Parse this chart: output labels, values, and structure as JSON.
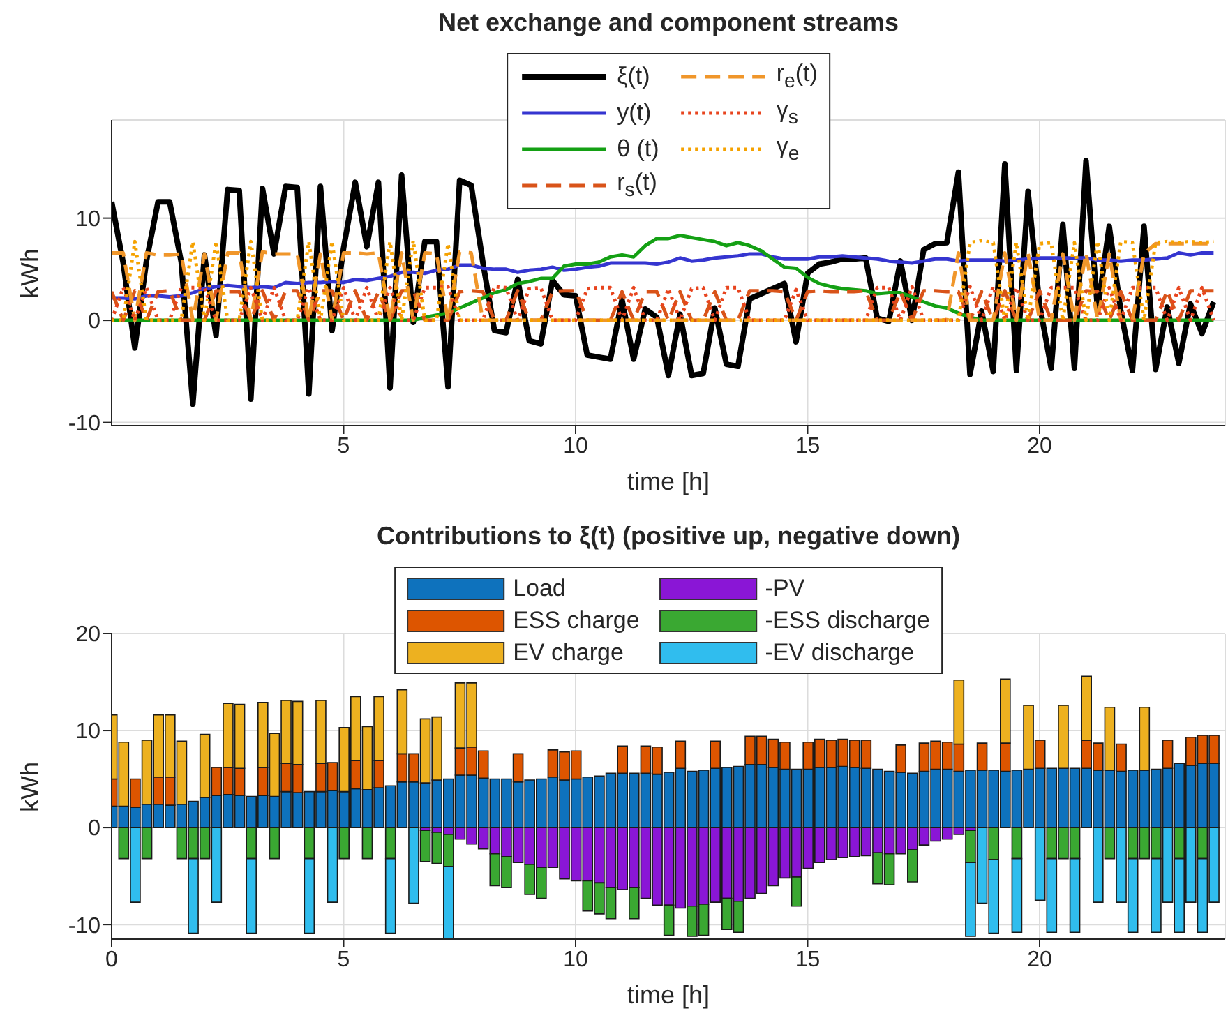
{
  "chart_data": [
    {
      "type": "line",
      "title": "Net exchange and component streams",
      "xlabel": "time [h]",
      "ylabel": "kWh",
      "x": [
        0,
        0.25,
        0.5,
        0.75,
        1,
        1.25,
        1.5,
        1.75,
        2,
        2.25,
        2.5,
        2.75,
        3,
        3.25,
        3.5,
        3.75,
        4,
        4.25,
        4.5,
        4.75,
        5,
        5.25,
        5.5,
        5.75,
        6,
        6.25,
        6.5,
        6.75,
        7,
        7.25,
        7.5,
        7.75,
        8,
        8.25,
        8.5,
        8.75,
        9,
        9.25,
        9.5,
        9.75,
        10,
        10.25,
        10.5,
        10.75,
        11,
        11.25,
        11.5,
        11.75,
        12,
        12.25,
        12.5,
        12.75,
        13,
        13.25,
        13.5,
        13.75,
        14,
        14.25,
        14.5,
        14.75,
        15,
        15.25,
        15.5,
        15.75,
        16,
        16.25,
        16.5,
        16.75,
        17,
        17.25,
        17.5,
        17.75,
        18,
        18.25,
        18.5,
        18.75,
        19,
        19.25,
        19.5,
        19.75,
        20,
        20.25,
        20.5,
        20.75,
        21,
        21.25,
        21.5,
        21.75,
        22,
        22.25,
        22.5,
        22.75,
        23,
        23.25,
        23.5,
        23.75
      ],
      "xlim": [
        0,
        24
      ],
      "xticks": [
        5,
        10,
        15,
        20
      ],
      "ylim": [
        -10.3,
        19.6
      ],
      "yticks": [
        -10,
        0,
        10
      ],
      "grid": true,
      "legend": "top",
      "series": [
        {
          "name": "ξ(t)",
          "color": "#000000",
          "line_style": "solid",
          "values": [
            11.6,
            5.6,
            -2.7,
            5.8,
            11.6,
            11.6,
            5.7,
            -8.2,
            6.4,
            -1.5,
            12.8,
            12.7,
            -7.7,
            12.9,
            6.5,
            13.1,
            13.0,
            -7.2,
            13.1,
            -1.0,
            7.1,
            13.5,
            7.2,
            13.5,
            -6.6,
            14.2,
            -0.2,
            7.7,
            7.7,
            -6.5,
            13.7,
            13.2,
            5.7,
            -1.0,
            -1.2,
            4.0,
            -2.0,
            -2.3,
            3.9,
            2.5,
            2.4,
            -3.4,
            -3.6,
            -3.8,
            2.0,
            -3.8,
            1.1,
            0.3,
            -5.4,
            0.6,
            -5.4,
            -5.2,
            1.2,
            -4.3,
            -4.5,
            2.1,
            2.6,
            3.1,
            3.6,
            -2.1,
            4.6,
            5.5,
            5.7,
            6.0,
            6.0,
            6.1,
            0.2,
            -0.1,
            5.8,
            0.0,
            6.9,
            7.5,
            7.6,
            14.5,
            -5.3,
            0.9,
            -5.0,
            15.3,
            -4.9,
            12.6,
            1.5,
            -4.7,
            9.4,
            -4.7,
            15.6,
            1.0,
            9.2,
            0.9,
            -4.9,
            9.2,
            -4.8,
            1.3,
            -4.2,
            1.6,
            -1.3,
            1.8
          ]
        },
        {
          "name": "y(t)",
          "color": "#3535d0",
          "line_style": "solid",
          "values": [
            2.2,
            2.2,
            2.1,
            2.4,
            2.4,
            2.3,
            2.4,
            2.7,
            3.1,
            3.3,
            3.4,
            3.3,
            3.2,
            3.3,
            3.2,
            3.7,
            3.6,
            3.7,
            3.7,
            3.8,
            3.7,
            4.0,
            3.9,
            4.1,
            4.3,
            4.7,
            4.7,
            4.6,
            4.9,
            5.0,
            5.4,
            5.4,
            5.1,
            5.0,
            5.0,
            4.7,
            4.9,
            5.0,
            5.2,
            4.9,
            5.0,
            5.2,
            5.3,
            5.6,
            5.6,
            5.6,
            5.6,
            5.5,
            5.7,
            6.1,
            5.8,
            5.9,
            6.1,
            6.2,
            6.3,
            6.5,
            6.5,
            6.2,
            6.0,
            6.0,
            6.0,
            6.2,
            6.2,
            6.3,
            6.2,
            6.1,
            6.0,
            5.8,
            5.7,
            5.6,
            5.8,
            6.0,
            6.0,
            5.8,
            5.9,
            5.9,
            5.9,
            5.8,
            5.9,
            6.0,
            6.1,
            6.1,
            6.1,
            6.1,
            6.1,
            5.9,
            5.9,
            5.8,
            5.9,
            5.9,
            6.0,
            6.1,
            6.6,
            6.4,
            6.6,
            6.6
          ]
        },
        {
          "name": "θ (t)",
          "color": "#14a014",
          "line_style": "solid",
          "values": [
            0,
            0,
            0,
            0,
            0,
            0,
            0,
            0,
            0,
            0,
            0,
            0,
            0,
            0,
            0,
            0,
            0,
            0,
            0,
            0,
            0,
            0,
            0,
            0,
            0,
            0,
            0,
            0.3,
            0.5,
            0.7,
            1.2,
            1.7,
            2.2,
            2.7,
            3.0,
            3.6,
            3.8,
            4.1,
            4.1,
            5.3,
            5.5,
            5.5,
            5.7,
            6.2,
            6.4,
            6.2,
            7.3,
            8.0,
            8.0,
            8.3,
            8.1,
            7.9,
            7.7,
            7.3,
            7.6,
            7.3,
            6.8,
            6.0,
            5.2,
            5.1,
            4.2,
            3.6,
            3.3,
            3.1,
            3.0,
            2.9,
            2.6,
            2.7,
            2.7,
            2.3,
            1.8,
            1.4,
            1.2,
            0.7,
            0.3,
            0,
            0,
            0,
            0,
            0,
            0,
            0,
            0,
            0,
            0,
            0,
            0,
            0,
            0,
            0,
            0,
            0,
            0,
            0,
            0,
            0
          ]
        },
        {
          "name": "r$_{s}$(t)",
          "color": "#d95319",
          "line_style": "dashed",
          "values": [
            2.8,
            0,
            2.9,
            0,
            2.8,
            2.9,
            0,
            0,
            0,
            2.9,
            2.8,
            2.8,
            0,
            2.9,
            0,
            2.9,
            2.9,
            0,
            2.9,
            2.9,
            0,
            2.9,
            0,
            2.8,
            0,
            2.9,
            2.9,
            0,
            0,
            0,
            2.8,
            2.9,
            2.8,
            0,
            0,
            2.9,
            0,
            0,
            2.8,
            2.9,
            2.9,
            0,
            0,
            0,
            2.8,
            0,
            2.8,
            2.8,
            0,
            2.8,
            0,
            0,
            2.8,
            0,
            0,
            2.9,
            2.9,
            2.9,
            2.8,
            0,
            2.8,
            2.9,
            2.8,
            2.8,
            2.8,
            2.9,
            0,
            0,
            2.8,
            0,
            2.9,
            2.9,
            2.8,
            2.8,
            0,
            2.8,
            0,
            2.9,
            0,
            0,
            2.9,
            0,
            0,
            0,
            2.9,
            2.8,
            0,
            2.8,
            0,
            0,
            0,
            2.9,
            0,
            2.9,
            2.9,
            2.9
          ]
        },
        {
          "name": "r$_{e}$(t)",
          "color": "#f0962a",
          "line_style": "dashed",
          "values": [
            6.6,
            6.6,
            0,
            6.6,
            6.4,
            6.4,
            6.5,
            0,
            6.5,
            0,
            6.6,
            6.6,
            0,
            6.7,
            6.5,
            6.5,
            6.5,
            0,
            6.5,
            0,
            6.6,
            6.6,
            6.5,
            6.6,
            0,
            6.6,
            0,
            6.6,
            6.5,
            0,
            6.7,
            6.6,
            0,
            0,
            0,
            0,
            0,
            0,
            0,
            0,
            0,
            0,
            0,
            0,
            0,
            0,
            0,
            0,
            0,
            0,
            0,
            0,
            0,
            0,
            0,
            0,
            0,
            0,
            0,
            0,
            0,
            0,
            0,
            0,
            0,
            0,
            0,
            0,
            0,
            0,
            0,
            0,
            0,
            6.6,
            0,
            0,
            0,
            6.6,
            0,
            6.6,
            0,
            0,
            6.5,
            0,
            6.6,
            0,
            6.5,
            0,
            0,
            6.5,
            7.5,
            7.5,
            7.5,
            7.5,
            7.5,
            7.5
          ]
        },
        {
          "name": "γ$_{s}$",
          "color": "#e8441e",
          "line_style": "dotted",
          "values": [
            0,
            3.2,
            0,
            3.2,
            0,
            0,
            3.2,
            3.2,
            3.2,
            0,
            0,
            0,
            3.2,
            0,
            3.2,
            0,
            0,
            3.2,
            0,
            0,
            3.2,
            0,
            3.2,
            0,
            3.2,
            0,
            0,
            3.2,
            3.2,
            3.3,
            0,
            0,
            0,
            3.3,
            3.2,
            0,
            3.1,
            3.2,
            0,
            0,
            0,
            3.1,
            3.2,
            3.2,
            0,
            3.2,
            0,
            0,
            3.1,
            0,
            3.1,
            3.2,
            0,
            3.2,
            3.2,
            0,
            0,
            0,
            0,
            3.0,
            0,
            0,
            0,
            0,
            0,
            0,
            3.2,
            3.2,
            0,
            3.3,
            0,
            0,
            0,
            0,
            3.3,
            0,
            3.3,
            0,
            3.2,
            0,
            0,
            3.2,
            3.2,
            3.2,
            0,
            0,
            3.2,
            0,
            3.2,
            3.2,
            3.2,
            0,
            3.2,
            0,
            3.2,
            0
          ]
        },
        {
          "name": "γ$_{e}$",
          "color": "#f5a200",
          "line_style": "dotted",
          "values": [
            0,
            0,
            7.7,
            0,
            0,
            0,
            0,
            7.7,
            0,
            7.7,
            0,
            0,
            7.7,
            0,
            0,
            0,
            0,
            7.7,
            0,
            7.7,
            0,
            0,
            0,
            0,
            7.7,
            0,
            7.8,
            0,
            0,
            7.5,
            0,
            0,
            0,
            0,
            0,
            0,
            0,
            0,
            0,
            0,
            0,
            0,
            0,
            0,
            0,
            0,
            0,
            0,
            0,
            0,
            0,
            0,
            0,
            0,
            0,
            0,
            0,
            0,
            0,
            0,
            0,
            0,
            0,
            0,
            0,
            0,
            0,
            0,
            0,
            0,
            0,
            0,
            0,
            0,
            7.6,
            7.8,
            7.6,
            0,
            7.6,
            0,
            7.5,
            7.6,
            0,
            7.6,
            0,
            7.7,
            0,
            7.7,
            7.6,
            0,
            7.6,
            7.7,
            7.6,
            7.7,
            7.6,
            7.7
          ]
        }
      ]
    },
    {
      "type": "bar",
      "stacked": true,
      "title": "Contributions to ξ(t) (positive up, negative down)",
      "xlabel": "time [h]",
      "ylabel": "kWh",
      "x": [
        0,
        0.25,
        0.5,
        0.75,
        1,
        1.25,
        1.5,
        1.75,
        2,
        2.25,
        2.5,
        2.75,
        3,
        3.25,
        3.5,
        3.75,
        4,
        4.25,
        4.5,
        4.75,
        5,
        5.25,
        5.5,
        5.75,
        6,
        6.25,
        6.5,
        6.75,
        7,
        7.25,
        7.5,
        7.75,
        8,
        8.25,
        8.5,
        8.75,
        9,
        9.25,
        9.5,
        9.75,
        10,
        10.25,
        10.5,
        10.75,
        11,
        11.25,
        11.5,
        11.75,
        12,
        12.25,
        12.5,
        12.75,
        13,
        13.25,
        13.5,
        13.75,
        14,
        14.25,
        14.5,
        14.75,
        15,
        15.25,
        15.5,
        15.75,
        16,
        16.25,
        16.5,
        16.75,
        17,
        17.25,
        17.5,
        17.75,
        18,
        18.25,
        18.5,
        18.75,
        19,
        19.25,
        19.5,
        19.75,
        20,
        20.25,
        20.5,
        20.75,
        21,
        21.25,
        21.5,
        21.75,
        22,
        22.25,
        22.5,
        22.75,
        23,
        23.25,
        23.5,
        23.75
      ],
      "xlim": [
        0,
        24
      ],
      "xticks": [
        0,
        5,
        10,
        15,
        20
      ],
      "ylim": [
        -11.5,
        20
      ],
      "yticks": [
        -10,
        0,
        10,
        20
      ],
      "grid": true,
      "legend": "top",
      "series": [
        {
          "name": "Load",
          "color": "#0e72bd",
          "values": [
            2.2,
            2.2,
            2.1,
            2.4,
            2.4,
            2.3,
            2.4,
            2.7,
            3.1,
            3.3,
            3.4,
            3.3,
            3.2,
            3.3,
            3.2,
            3.7,
            3.6,
            3.7,
            3.7,
            3.8,
            3.7,
            4.0,
            3.9,
            4.1,
            4.3,
            4.7,
            4.7,
            4.6,
            4.9,
            5.0,
            5.4,
            5.4,
            5.1,
            5.0,
            5.0,
            4.7,
            4.9,
            5.0,
            5.2,
            4.9,
            5.0,
            5.2,
            5.3,
            5.6,
            5.6,
            5.6,
            5.6,
            5.5,
            5.7,
            6.1,
            5.8,
            5.9,
            6.1,
            6.2,
            6.3,
            6.5,
            6.5,
            6.2,
            6.0,
            6.0,
            6.0,
            6.2,
            6.2,
            6.3,
            6.2,
            6.1,
            6.0,
            5.8,
            5.7,
            5.6,
            5.8,
            6.0,
            6.0,
            5.8,
            5.9,
            5.9,
            5.9,
            5.8,
            5.9,
            6.0,
            6.1,
            6.1,
            6.1,
            6.1,
            6.1,
            5.9,
            5.9,
            5.8,
            5.9,
            5.9,
            6.0,
            6.1,
            6.6,
            6.4,
            6.6,
            6.6
          ]
        },
        {
          "name": "ESS charge",
          "color": "#dd5500",
          "values": [
            2.8,
            null,
            2.9,
            null,
            2.8,
            2.9,
            null,
            null,
            null,
            2.9,
            2.8,
            2.8,
            null,
            2.9,
            null,
            2.9,
            2.9,
            null,
            2.9,
            2.9,
            null,
            2.9,
            null,
            2.8,
            null,
            2.9,
            2.9,
            null,
            null,
            null,
            2.8,
            2.9,
            2.8,
            null,
            null,
            2.9,
            null,
            null,
            2.8,
            2.9,
            2.9,
            null,
            null,
            null,
            2.8,
            null,
            2.8,
            2.8,
            null,
            2.8,
            null,
            null,
            2.8,
            null,
            null,
            2.9,
            2.9,
            2.9,
            2.8,
            null,
            2.8,
            2.9,
            2.8,
            2.8,
            2.8,
            2.9,
            null,
            null,
            2.8,
            null,
            2.9,
            2.9,
            2.8,
            2.8,
            null,
            2.8,
            null,
            2.9,
            null,
            null,
            2.9,
            null,
            null,
            null,
            2.9,
            2.8,
            null,
            2.8,
            null,
            null,
            null,
            2.9,
            null,
            2.9,
            2.9,
            2.9
          ]
        },
        {
          "name": "EV charge",
          "color": "#edb120",
          "values": [
            6.6,
            6.6,
            null,
            6.6,
            6.4,
            6.4,
            6.5,
            null,
            6.5,
            null,
            6.6,
            6.6,
            null,
            6.7,
            6.5,
            6.5,
            6.5,
            null,
            6.5,
            null,
            6.6,
            6.6,
            6.5,
            6.6,
            null,
            6.6,
            null,
            6.6,
            6.5,
            null,
            6.7,
            6.6,
            null,
            null,
            null,
            null,
            null,
            null,
            null,
            null,
            null,
            null,
            null,
            null,
            null,
            null,
            null,
            null,
            null,
            null,
            null,
            null,
            null,
            null,
            null,
            null,
            null,
            null,
            null,
            null,
            null,
            null,
            null,
            null,
            null,
            null,
            null,
            null,
            null,
            null,
            null,
            null,
            null,
            6.6,
            null,
            null,
            null,
            6.6,
            null,
            6.6,
            null,
            null,
            6.5,
            null,
            6.6,
            null,
            6.5,
            null,
            null,
            6.5,
            null,
            null,
            null,
            null,
            null,
            null
          ]
        },
        {
          "name": "-PV",
          "color": "#8a16d6",
          "values": [
            null,
            null,
            null,
            null,
            null,
            null,
            null,
            null,
            null,
            null,
            null,
            null,
            null,
            null,
            null,
            null,
            null,
            null,
            null,
            null,
            null,
            null,
            null,
            null,
            null,
            null,
            null,
            -0.3,
            -0.5,
            -0.7,
            -1.2,
            -1.7,
            -2.2,
            -2.7,
            -3.0,
            -3.6,
            -3.8,
            -4.1,
            -4.1,
            -5.3,
            -5.5,
            -5.5,
            -5.7,
            -6.2,
            -6.4,
            -6.2,
            -7.3,
            -8.0,
            -8.0,
            -8.3,
            -8.1,
            -7.9,
            -7.7,
            -7.3,
            -7.6,
            -7.3,
            -6.8,
            -6.0,
            -5.2,
            -5.1,
            -4.2,
            -3.6,
            -3.3,
            -3.1,
            -3.0,
            -2.9,
            -2.6,
            -2.7,
            -2.7,
            -2.3,
            -1.8,
            -1.4,
            -1.2,
            -0.7,
            -0.3,
            null,
            null,
            null,
            null,
            null,
            null,
            null,
            null,
            null,
            null,
            null,
            null,
            null,
            null,
            null,
            null,
            null,
            null,
            null,
            null,
            null
          ]
        },
        {
          "name": "-ESS discharge",
          "color": "#3aa832",
          "values": [
            null,
            -3.2,
            null,
            -3.2,
            null,
            null,
            -3.2,
            -3.2,
            -3.2,
            null,
            null,
            null,
            -3.2,
            null,
            -3.2,
            null,
            null,
            -3.2,
            null,
            null,
            -3.2,
            null,
            -3.2,
            null,
            -3.2,
            null,
            null,
            -3.2,
            -3.2,
            -3.3,
            null,
            null,
            null,
            -3.3,
            -3.2,
            null,
            -3.1,
            -3.2,
            null,
            null,
            null,
            -3.1,
            -3.2,
            -3.2,
            null,
            -3.2,
            null,
            null,
            -3.1,
            null,
            -3.1,
            -3.2,
            null,
            -3.2,
            -3.2,
            null,
            null,
            null,
            null,
            -3.0,
            null,
            null,
            null,
            null,
            null,
            null,
            -3.2,
            -3.2,
            null,
            -3.3,
            null,
            null,
            null,
            null,
            -3.3,
            null,
            -3.3,
            null,
            -3.2,
            null,
            null,
            -3.2,
            -3.2,
            -3.2,
            null,
            null,
            -3.2,
            null,
            -3.2,
            -3.2,
            -3.2,
            null,
            -3.2,
            null,
            -3.2,
            null
          ]
        },
        {
          "name": "-EV discharge",
          "color": "#30bdee",
          "values": [
            null,
            null,
            -7.7,
            null,
            null,
            null,
            null,
            -7.7,
            null,
            -7.7,
            null,
            null,
            -7.7,
            null,
            null,
            null,
            null,
            -7.7,
            null,
            -7.7,
            null,
            null,
            null,
            null,
            -7.7,
            null,
            -7.8,
            null,
            null,
            -7.5,
            null,
            null,
            null,
            null,
            null,
            null,
            null,
            null,
            null,
            null,
            null,
            null,
            null,
            null,
            null,
            null,
            null,
            null,
            null,
            null,
            null,
            null,
            null,
            null,
            null,
            null,
            null,
            null,
            null,
            null,
            null,
            null,
            null,
            null,
            null,
            null,
            null,
            null,
            null,
            null,
            null,
            null,
            null,
            null,
            -7.6,
            -7.8,
            -7.6,
            null,
            -7.6,
            null,
            -7.5,
            -7.6,
            null,
            -7.6,
            null,
            -7.7,
            null,
            -7.7,
            -7.6,
            null,
            -7.6,
            -7.7,
            -7.6,
            -7.7,
            -7.6,
            -7.7
          ]
        }
      ]
    }
  ]
}
